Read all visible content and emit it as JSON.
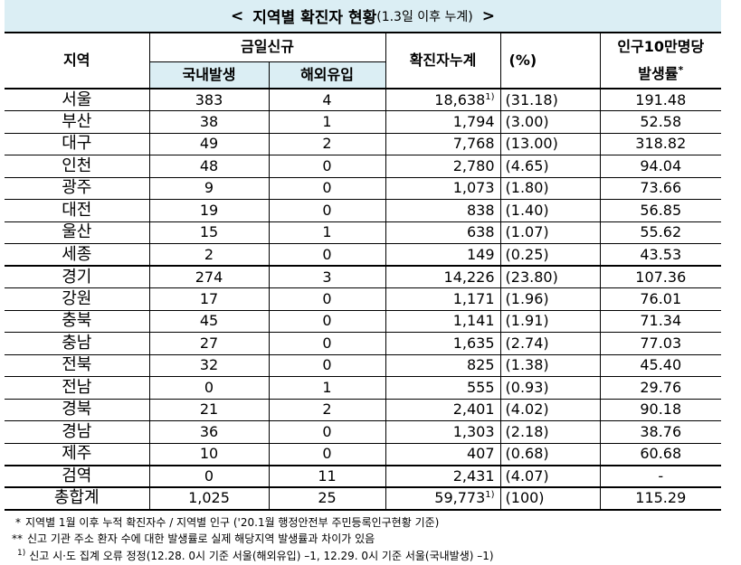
{
  "title": {
    "open": "<",
    "main": "지역별 확진자 현황",
    "sub": "(1.3일 이후 누계)",
    "close": ">"
  },
  "header": {
    "region": "지역",
    "today_new": "금일신규",
    "domestic": "국내발생",
    "overseas": "해외유입",
    "cumulative": "확진자누계",
    "percent": "(%)",
    "rate_line1": "인구10만명당",
    "rate_line2": "발생률",
    "rate_mark": "*"
  },
  "rows": [
    {
      "region": "서울",
      "domestic": "383",
      "overseas": "4",
      "cumulative": "18,638",
      "note": "1)",
      "percent": "(31.18)",
      "rate": "191.48"
    },
    {
      "region": "부산",
      "domestic": "38",
      "overseas": "1",
      "cumulative": "1,794",
      "percent": "(3.00)",
      "rate": "52.58"
    },
    {
      "region": "대구",
      "domestic": "49",
      "overseas": "2",
      "cumulative": "7,768",
      "percent": "(13.00)",
      "rate": "318.82"
    },
    {
      "region": "인천",
      "domestic": "48",
      "overseas": "0",
      "cumulative": "2,780",
      "percent": "(4.65)",
      "rate": "94.04"
    },
    {
      "region": "광주",
      "domestic": "9",
      "overseas": "0",
      "cumulative": "1,073",
      "percent": "(1.80)",
      "rate": "73.66"
    },
    {
      "region": "대전",
      "domestic": "19",
      "overseas": "0",
      "cumulative": "838",
      "percent": "(1.40)",
      "rate": "56.85"
    },
    {
      "region": "울산",
      "domestic": "15",
      "overseas": "1",
      "cumulative": "638",
      "percent": "(1.07)",
      "rate": "55.62"
    },
    {
      "region": "세종",
      "domestic": "2",
      "overseas": "0",
      "cumulative": "149",
      "percent": "(0.25)",
      "rate": "43.53"
    },
    {
      "region": "경기",
      "domestic": "274",
      "overseas": "3",
      "cumulative": "14,226",
      "percent": "(23.80)",
      "rate": "107.36"
    },
    {
      "region": "강원",
      "domestic": "17",
      "overseas": "0",
      "cumulative": "1,171",
      "percent": "(1.96)",
      "rate": "76.01"
    },
    {
      "region": "충북",
      "domestic": "45",
      "overseas": "0",
      "cumulative": "1,141",
      "percent": "(1.91)",
      "rate": "71.34"
    },
    {
      "region": "충남",
      "domestic": "27",
      "overseas": "0",
      "cumulative": "1,635",
      "percent": "(2.74)",
      "rate": "77.03"
    },
    {
      "region": "전북",
      "domestic": "32",
      "overseas": "0",
      "cumulative": "825",
      "percent": "(1.38)",
      "rate": "45.40"
    },
    {
      "region": "전남",
      "domestic": "0",
      "overseas": "1",
      "cumulative": "555",
      "percent": "(0.93)",
      "rate": "29.76"
    },
    {
      "region": "경북",
      "domestic": "21",
      "overseas": "2",
      "cumulative": "2,401",
      "percent": "(4.02)",
      "rate": "90.18"
    },
    {
      "region": "경남",
      "domestic": "36",
      "overseas": "0",
      "cumulative": "1,303",
      "percent": "(2.18)",
      "rate": "38.76"
    },
    {
      "region": "제주",
      "domestic": "10",
      "overseas": "0",
      "cumulative": "407",
      "percent": "(0.68)",
      "rate": "60.68"
    },
    {
      "region": "검역",
      "domestic": "0",
      "overseas": "11",
      "cumulative": "2,431",
      "percent": "(4.07)",
      "rate": "-"
    }
  ],
  "total": {
    "region": "총합계",
    "domestic": "1,025",
    "overseas": "25",
    "cumulative": "59,773",
    "note": "1)",
    "percent": "(100)",
    "rate": "115.29"
  },
  "footnotes": [
    {
      "mark": "*",
      "text": "지역별 1월 이후 누적 확진자수 / 지역별 인구 ('20.1월 행정안전부 주민등록인구현황 기준)"
    },
    {
      "mark": "**",
      "text": "신고 기관 주소 환자 수에 대한 발생률로 실제 해당지역 발생률과 차이가 있음"
    },
    {
      "mark": "1)",
      "text": "신고 시·도 집계 오류 정정(12.28. 0시 기준 서울(해외유입) –1, 12.29. 0시 기준 서울(국내발생) –1)"
    }
  ],
  "colors": {
    "title_background": "#dbeef4",
    "subheader_background": "#dbeef4",
    "border": "#000000"
  }
}
